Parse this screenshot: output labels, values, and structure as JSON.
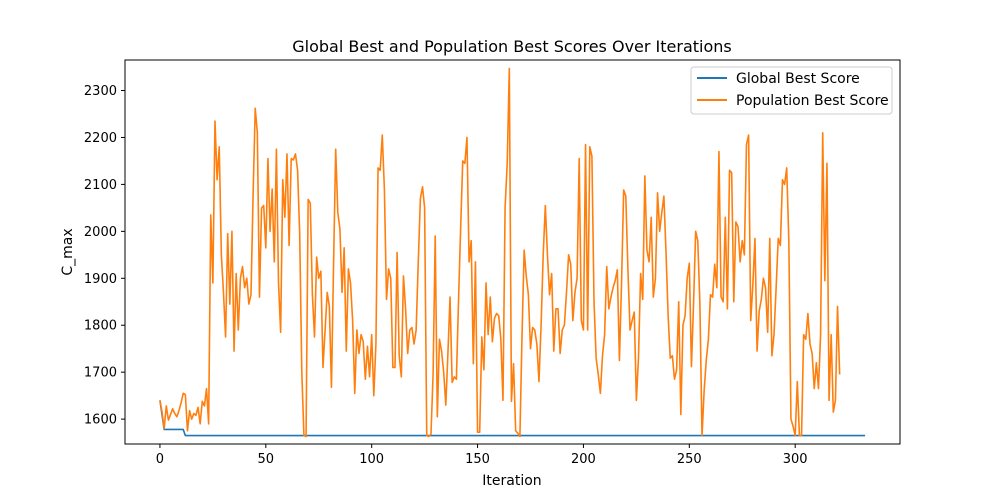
{
  "chart_data": {
    "type": "line",
    "title": "Global Best and Population Best Scores Over Iterations",
    "xlabel": "Iteration",
    "ylabel": "C_max",
    "xlim": [
      -16.5,
      349.5
    ],
    "ylim": [
      1547,
      2365
    ],
    "xticks": [
      0,
      50,
      100,
      150,
      200,
      250,
      300
    ],
    "yticks": [
      1600,
      1700,
      1800,
      1900,
      2000,
      2100,
      2200,
      2300
    ],
    "grid": false,
    "legend_position": "top-right",
    "series": [
      {
        "name": "Global Best Score",
        "color": "#1f77b4",
        "points": [
          [
            0,
            1640
          ],
          [
            2,
            1578
          ],
          [
            11,
            1578
          ],
          [
            12,
            1565
          ],
          [
            333,
            1565
          ]
        ]
      },
      {
        "name": "Population Best Score",
        "color": "#ff7f0e",
        "points": [
          [
            0,
            1640
          ],
          [
            1,
            1615
          ],
          [
            2,
            1580
          ],
          [
            3,
            1628
          ],
          [
            4,
            1598
          ],
          [
            5,
            1610
          ],
          [
            6,
            1622
          ],
          [
            7,
            1612
          ],
          [
            8,
            1605
          ],
          [
            9,
            1618
          ],
          [
            10,
            1635
          ],
          [
            11,
            1655
          ],
          [
            12,
            1652
          ],
          [
            13,
            1575
          ],
          [
            14,
            1618
          ],
          [
            15,
            1600
          ],
          [
            16,
            1612
          ],
          [
            17,
            1608
          ],
          [
            18,
            1625
          ],
          [
            19,
            1590
          ],
          [
            20,
            1638
          ],
          [
            21,
            1628
          ],
          [
            22,
            1665
          ],
          [
            23,
            1590
          ],
          [
            24,
            2035
          ],
          [
            25,
            1890
          ],
          [
            26,
            2235
          ],
          [
            27,
            2110
          ],
          [
            28,
            2180
          ],
          [
            29,
            1950
          ],
          [
            30,
            1870
          ],
          [
            31,
            1775
          ],
          [
            32,
            1995
          ],
          [
            33,
            1845
          ],
          [
            34,
            2000
          ],
          [
            35,
            1745
          ],
          [
            36,
            1910
          ],
          [
            37,
            1790
          ],
          [
            38,
            1900
          ],
          [
            39,
            1925
          ],
          [
            40,
            1880
          ],
          [
            41,
            1900
          ],
          [
            42,
            1845
          ],
          [
            43,
            1865
          ],
          [
            44,
            2080
          ],
          [
            45,
            2262
          ],
          [
            46,
            2210
          ],
          [
            47,
            1860
          ],
          [
            48,
            2050
          ],
          [
            49,
            2055
          ],
          [
            50,
            1965
          ],
          [
            51,
            2155
          ],
          [
            52,
            2000
          ],
          [
            53,
            2090
          ],
          [
            54,
            1935
          ],
          [
            55,
            2175
          ],
          [
            56,
            1890
          ],
          [
            57,
            1785
          ],
          [
            58,
            2110
          ],
          [
            59,
            2030
          ],
          [
            60,
            2165
          ],
          [
            61,
            1970
          ],
          [
            62,
            2155
          ],
          [
            63,
            2152
          ],
          [
            64,
            2165
          ],
          [
            65,
            2130
          ],
          [
            66,
            1995
          ],
          [
            67,
            1700
          ],
          [
            68,
            1565
          ],
          [
            69,
            1563
          ],
          [
            70,
            2068
          ],
          [
            71,
            2060
          ],
          [
            72,
            1865
          ],
          [
            73,
            1775
          ],
          [
            74,
            1945
          ],
          [
            75,
            1900
          ],
          [
            76,
            1915
          ],
          [
            77,
            1710
          ],
          [
            78,
            1790
          ],
          [
            79,
            1870
          ],
          [
            80,
            1840
          ],
          [
            81,
            1668
          ],
          [
            82,
            1930
          ],
          [
            83,
            2175
          ],
          [
            84,
            2040
          ],
          [
            85,
            2005
          ],
          [
            86,
            1870
          ],
          [
            87,
            1965
          ],
          [
            88,
            1745
          ],
          [
            89,
            1920
          ],
          [
            90,
            1890
          ],
          [
            91,
            1810
          ],
          [
            92,
            1655
          ],
          [
            93,
            1790
          ],
          [
            94,
            1740
          ],
          [
            95,
            1780
          ],
          [
            96,
            1765
          ],
          [
            97,
            1685
          ],
          [
            98,
            1755
          ],
          [
            99,
            1690
          ],
          [
            100,
            1780
          ],
          [
            101,
            1650
          ],
          [
            102,
            1760
          ],
          [
            103,
            2135
          ],
          [
            104,
            2130
          ],
          [
            105,
            2205
          ],
          [
            106,
            2090
          ],
          [
            107,
            1855
          ],
          [
            108,
            1920
          ],
          [
            109,
            1900
          ],
          [
            110,
            1710
          ],
          [
            111,
            1710
          ],
          [
            112,
            1955
          ],
          [
            113,
            1735
          ],
          [
            114,
            1690
          ],
          [
            115,
            1905
          ],
          [
            116,
            1835
          ],
          [
            117,
            1740
          ],
          [
            118,
            1790
          ],
          [
            119,
            1795
          ],
          [
            120,
            1760
          ],
          [
            121,
            1790
          ],
          [
            122,
            1935
          ],
          [
            123,
            2070
          ],
          [
            124,
            2095
          ],
          [
            125,
            2050
          ],
          [
            126,
            1565
          ],
          [
            127,
            1563
          ],
          [
            128,
            1568
          ],
          [
            129,
            1695
          ],
          [
            130,
            1990
          ],
          [
            131,
            1605
          ],
          [
            132,
            1770
          ],
          [
            133,
            1745
          ],
          [
            134,
            1700
          ],
          [
            135,
            1630
          ],
          [
            136,
            1740
          ],
          [
            137,
            1860
          ],
          [
            138,
            1678
          ],
          [
            139,
            1690
          ],
          [
            140,
            1685
          ],
          [
            141,
            1850
          ],
          [
            142,
            2005
          ],
          [
            143,
            2150
          ],
          [
            144,
            2145
          ],
          [
            145,
            2200
          ],
          [
            146,
            1935
          ],
          [
            147,
            1980
          ],
          [
            148,
            1718
          ],
          [
            149,
            1935
          ],
          [
            150,
            1572
          ],
          [
            151,
            1572
          ],
          [
            152,
            1775
          ],
          [
            153,
            1705
          ],
          [
            154,
            1890
          ],
          [
            155,
            1780
          ],
          [
            156,
            1860
          ],
          [
            157,
            1765
          ],
          [
            158,
            1815
          ],
          [
            159,
            1825
          ],
          [
            160,
            1820
          ],
          [
            161,
            1770
          ],
          [
            162,
            1640
          ],
          [
            163,
            2050
          ],
          [
            164,
            2145
          ],
          [
            165,
            2347
          ],
          [
            166,
            1638
          ],
          [
            167,
            1718
          ],
          [
            168,
            1575
          ],
          [
            169,
            1570
          ],
          [
            170,
            1563
          ],
          [
            171,
            1780
          ],
          [
            172,
            1960
          ],
          [
            173,
            1905
          ],
          [
            174,
            1865
          ],
          [
            175,
            1750
          ],
          [
            176,
            1795
          ],
          [
            177,
            1790
          ],
          [
            178,
            1760
          ],
          [
            179,
            1680
          ],
          [
            180,
            1800
          ],
          [
            181,
            1950
          ],
          [
            182,
            2055
          ],
          [
            183,
            1950
          ],
          [
            184,
            1865
          ],
          [
            185,
            1910
          ],
          [
            186,
            1745
          ],
          [
            187,
            1835
          ],
          [
            188,
            1835
          ],
          [
            189,
            1740
          ],
          [
            190,
            1790
          ],
          [
            191,
            1800
          ],
          [
            192,
            1870
          ],
          [
            193,
            1950
          ],
          [
            194,
            1930
          ],
          [
            195,
            1810
          ],
          [
            196,
            1870
          ],
          [
            197,
            1900
          ],
          [
            198,
            2155
          ],
          [
            199,
            1810
          ],
          [
            200,
            1790
          ],
          [
            201,
            2185
          ],
          [
            202,
            1790
          ],
          [
            203,
            2180
          ],
          [
            204,
            2160
          ],
          [
            205,
            1850
          ],
          [
            206,
            1730
          ],
          [
            207,
            1695
          ],
          [
            208,
            1655
          ],
          [
            209,
            1735
          ],
          [
            210,
            1780
          ],
          [
            211,
            1925
          ],
          [
            212,
            1835
          ],
          [
            213,
            1860
          ],
          [
            214,
            1880
          ],
          [
            215,
            1895
          ],
          [
            216,
            1918
          ],
          [
            217,
            1725
          ],
          [
            218,
            1890
          ],
          [
            219,
            2088
          ],
          [
            220,
            2075
          ],
          [
            221,
            1920
          ],
          [
            222,
            1790
          ],
          [
            223,
            1810
          ],
          [
            224,
            1828
          ],
          [
            225,
            1640
          ],
          [
            226,
            1730
          ],
          [
            227,
            1910
          ],
          [
            228,
            1855
          ],
          [
            229,
            2118
          ],
          [
            230,
            1960
          ],
          [
            231,
            1935
          ],
          [
            232,
            2030
          ],
          [
            233,
            1860
          ],
          [
            234,
            1900
          ],
          [
            235,
            2082
          ],
          [
            236,
            2000
          ],
          [
            237,
            2040
          ],
          [
            238,
            2075
          ],
          [
            239,
            1955
          ],
          [
            240,
            1820
          ],
          [
            241,
            1730
          ],
          [
            242,
            1735
          ],
          [
            243,
            1685
          ],
          [
            244,
            1705
          ],
          [
            245,
            1850
          ],
          [
            246,
            1610
          ],
          [
            247,
            1800
          ],
          [
            248,
            1820
          ],
          [
            249,
            1900
          ],
          [
            250,
            1932
          ],
          [
            251,
            1712
          ],
          [
            252,
            1845
          ],
          [
            253,
            2000
          ],
          [
            254,
            1980
          ],
          [
            255,
            1845
          ],
          [
            256,
            1565
          ],
          [
            257,
            1660
          ],
          [
            258,
            1725
          ],
          [
            259,
            1770
          ],
          [
            260,
            1865
          ],
          [
            261,
            1860
          ],
          [
            262,
            1930
          ],
          [
            263,
            1880
          ],
          [
            264,
            2170
          ],
          [
            265,
            1860
          ],
          [
            266,
            1850
          ],
          [
            267,
            2030
          ],
          [
            268,
            1835
          ],
          [
            269,
            2130
          ],
          [
            270,
            2125
          ],
          [
            271,
            1850
          ],
          [
            272,
            2020
          ],
          [
            273,
            2010
          ],
          [
            274,
            1935
          ],
          [
            275,
            1980
          ],
          [
            276,
            1950
          ],
          [
            277,
            2185
          ],
          [
            278,
            2205
          ],
          [
            279,
            1810
          ],
          [
            280,
            1885
          ],
          [
            281,
            1985
          ],
          [
            282,
            1745
          ],
          [
            283,
            1830
          ],
          [
            284,
            1855
          ],
          [
            285,
            1900
          ],
          [
            286,
            1880
          ],
          [
            287,
            1785
          ],
          [
            288,
            1985
          ],
          [
            289,
            1735
          ],
          [
            290,
            1780
          ],
          [
            291,
            1880
          ],
          [
            292,
            1985
          ],
          [
            293,
            1970
          ],
          [
            294,
            2110
          ],
          [
            295,
            2100
          ],
          [
            296,
            2135
          ],
          [
            297,
            1980
          ],
          [
            298,
            1600
          ],
          [
            299,
            1585
          ],
          [
            300,
            1565
          ],
          [
            301,
            1680
          ],
          [
            302,
            1565
          ],
          [
            303,
            1565
          ],
          [
            304,
            1780
          ],
          [
            305,
            1770
          ],
          [
            306,
            1825
          ],
          [
            307,
            1760
          ],
          [
            308,
            1740
          ],
          [
            309,
            1665
          ],
          [
            310,
            1720
          ],
          [
            311,
            1665
          ],
          [
            312,
            1780
          ],
          [
            313,
            2210
          ],
          [
            314,
            1895
          ],
          [
            315,
            2145
          ],
          [
            316,
            1640
          ],
          [
            317,
            1780
          ],
          [
            318,
            1615
          ],
          [
            319,
            1640
          ],
          [
            320,
            1840
          ],
          [
            321,
            1695
          ]
        ]
      }
    ]
  }
}
